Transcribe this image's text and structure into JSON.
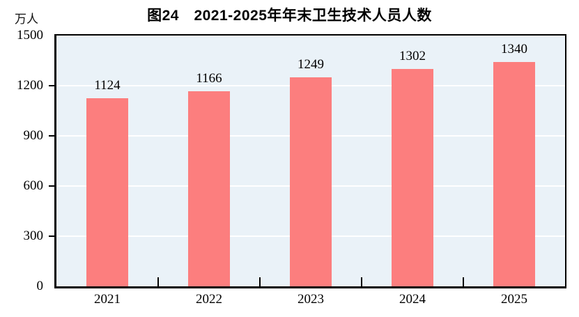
{
  "header": {
    "title": "图24　2021-2025年年末卫生技术人员人数",
    "unit_label": "万人"
  },
  "chart_data": {
    "type": "bar",
    "title": "图24　2021-2025年年末卫生技术人员人数",
    "xlabel": "",
    "ylabel": "万人",
    "categories": [
      "2021",
      "2022",
      "2023",
      "2024",
      "2025"
    ],
    "values": [
      1124,
      1166,
      1249,
      1302,
      1340
    ],
    "ylim": [
      0,
      1500
    ],
    "yticks": [
      0,
      300,
      600,
      900,
      1200,
      1500
    ],
    "grid": true,
    "legend": "none",
    "data_labels_shown": true,
    "colors": {
      "bar": "#FC7E7E",
      "plot_background": "#EAF2F8",
      "gridline": "#FFFFFF",
      "axis": "#000000",
      "text": "#000000"
    }
  }
}
